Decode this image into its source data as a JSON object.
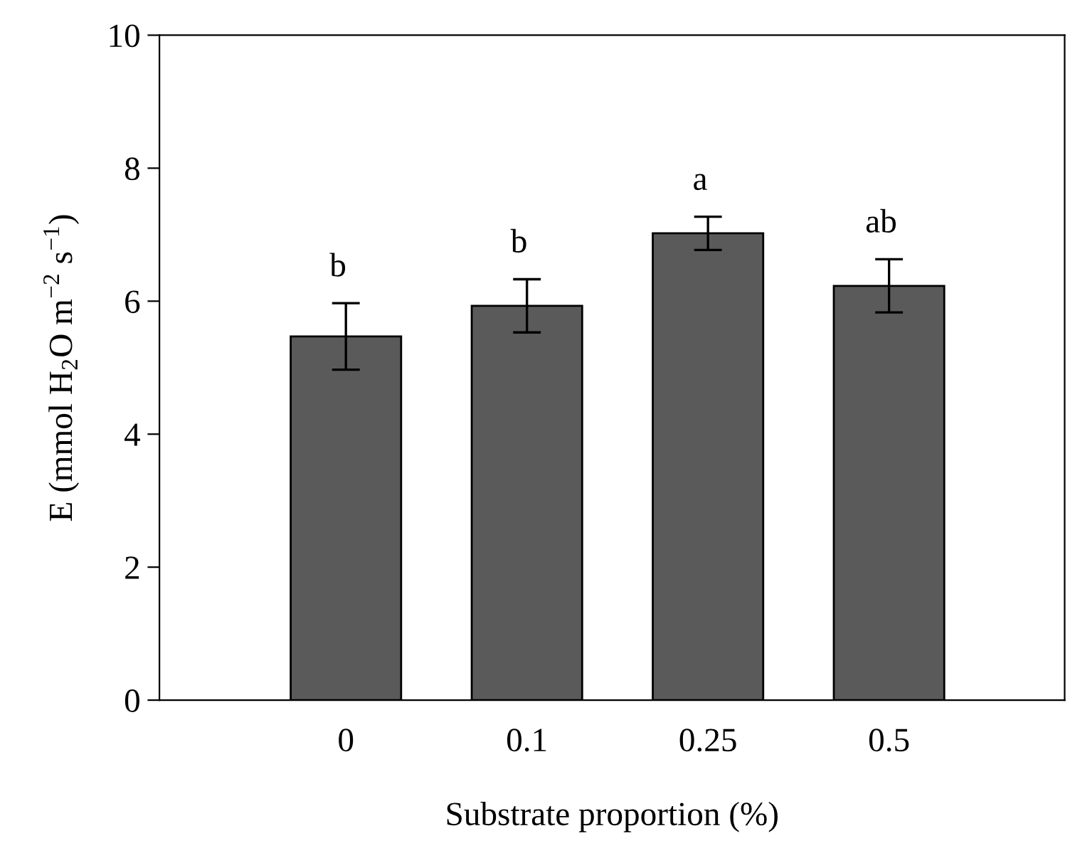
{
  "chart_data": {
    "type": "bar",
    "xlabel": "Substrate proportion (%)",
    "ylabel": "E (mmol H$_{2}$O m$^{−2}$ s$^{−1}$)",
    "categories": [
      "0",
      "0.1",
      "0.25",
      "0.5"
    ],
    "values": [
      5.47,
      5.93,
      7.02,
      6.23
    ],
    "errors": [
      0.5,
      0.4,
      0.25,
      0.4
    ],
    "color": "#5a5a5a",
    "ylim": [
      0,
      10
    ],
    "yticks": [
      0,
      2,
      4,
      6,
      8,
      10
    ],
    "grid": false,
    "legend": false,
    "annotations": [
      "b",
      "b",
      "a",
      "ab"
    ]
  }
}
